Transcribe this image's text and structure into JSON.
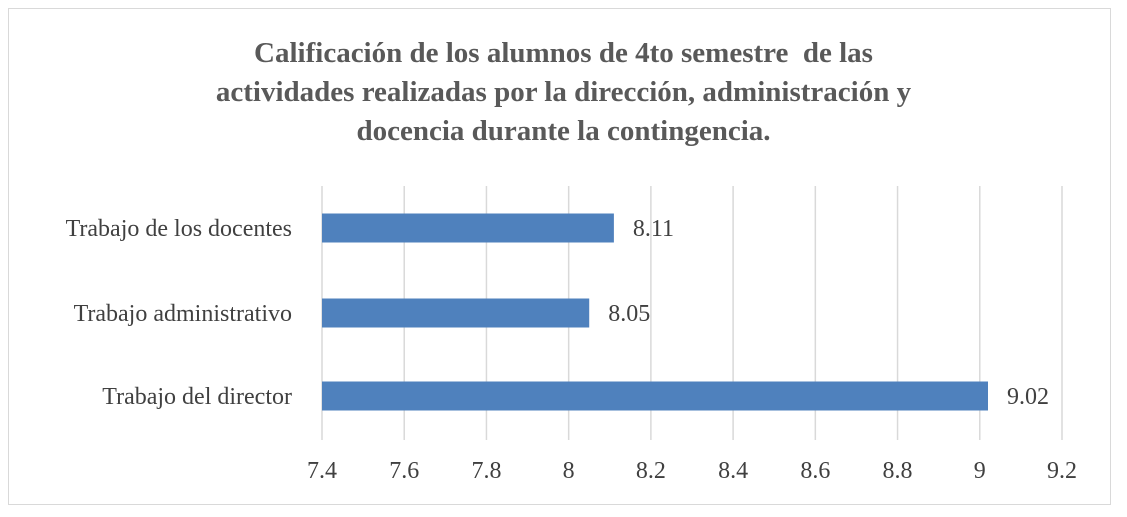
{
  "chart_data": {
    "type": "bar",
    "orientation": "horizontal",
    "title_lines": [
      "Calificación de los alumnos de 4to semestre  de las",
      "actividades realizadas por la dirección, administración y",
      "docencia durante la contingencia."
    ],
    "categories": [
      "Trabajo de los docentes",
      "Trabajo administrativo",
      "Trabajo del director"
    ],
    "values": [
      8.11,
      8.05,
      9.02
    ],
    "data_labels": [
      "8.11",
      "8.05",
      "9.02"
    ],
    "xlim": [
      7.4,
      9.2
    ],
    "x_ticks": [
      "7.4",
      "7.6",
      "7.8",
      "8",
      "8.2",
      "8.4",
      "8.6",
      "8.8",
      "9",
      "9.2"
    ],
    "grid": true,
    "legend": "none",
    "bar_color": "#4f81bd",
    "grid_color": "#d9d9d9",
    "title_color": "#595959",
    "text_color": "#404040"
  }
}
